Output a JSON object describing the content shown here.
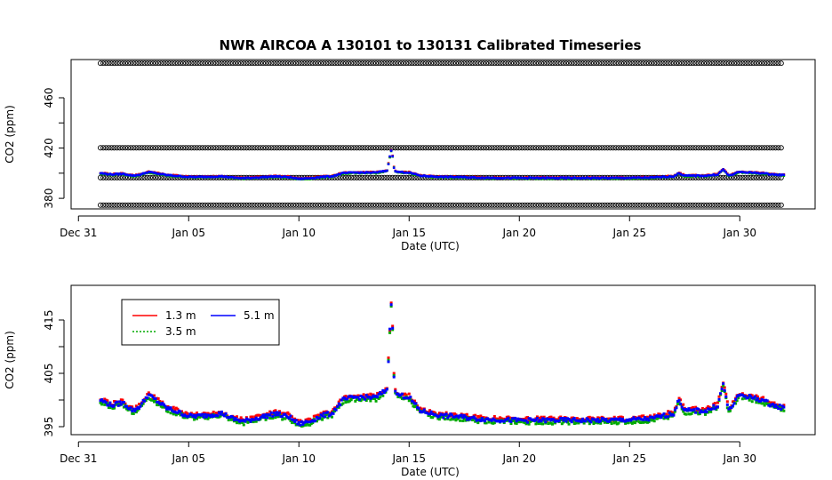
{
  "chart_data": [
    {
      "type": "scatter",
      "title": "NWR   AIRCOA  A   130101  to  130131   Calibrated Timeseries",
      "xlabel": "Date (UTC)",
      "ylabel": "CO2 (ppm)",
      "x_ticks": [
        "Dec 31",
        "Jan 05",
        "Jan 10",
        "Jan 15",
        "Jan 20",
        "Jan 25",
        "Jan 30"
      ],
      "y_ticks": [
        380,
        420,
        460
      ],
      "y_minor_ticks": [
        400,
        440
      ],
      "xlim": [
        "2012-12-30T16:00",
        "2013-02-02T10:00"
      ],
      "ylim": [
        371.6,
        490.4
      ],
      "grid": false,
      "series": [
        {
          "name": "",
          "color": "#000000",
          "value": 487.5,
          "x_range": [
            "2013-01-01T00:00",
            "2013-01-31T23:00"
          ]
        },
        {
          "name": "",
          "color": "#000000",
          "value": 420.2,
          "x_range": [
            "2013-01-01T00:00",
            "2013-01-31T23:00"
          ]
        },
        {
          "name": "",
          "color": "#000000",
          "value": 396.5,
          "x_range": [
            "2013-01-01T00:00",
            "2013-01-31T23:00"
          ]
        },
        {
          "name": "",
          "color": "#000000",
          "value": 374.6,
          "x_range": [
            "2013-01-01T00:00",
            "2013-01-31T23:00"
          ]
        },
        {
          "name": "1.3 m",
          "color": "#ff0000",
          "ref": "co2_profile"
        },
        {
          "name": "3.5 m",
          "color": "#00aa00",
          "ref": "co2_profile"
        },
        {
          "name": "5.1 m",
          "color": "#0000ff",
          "ref": "co2_profile"
        }
      ]
    },
    {
      "type": "scatter",
      "title": "",
      "xlabel": "Date (UTC)",
      "ylabel": "CO2 (ppm)",
      "x_ticks": [
        "Dec 31",
        "Jan 05",
        "Jan 10",
        "Jan 15",
        "Jan 20",
        "Jan 25",
        "Jan 30"
      ],
      "y_ticks": [
        395,
        405,
        415
      ],
      "y_minor_ticks": [
        400,
        410
      ],
      "xlim": [
        "2012-12-30T16:00",
        "2013-02-02T10:00"
      ],
      "ylim": [
        393.5,
        421.5
      ],
      "grid": false,
      "legend": {
        "position": "top-left",
        "entries": [
          {
            "label": "1.3 m",
            "color": "#ff0000"
          },
          {
            "label": "3.5 m",
            "color": "#00aa00"
          },
          {
            "label": "5.1 m",
            "color": "#0000ff"
          }
        ]
      },
      "co2_profile": {
        "x": [
          "2013-01-01T00:00",
          "2013-01-01T12:00",
          "2013-01-02T00:00",
          "2013-01-02T12:00",
          "2013-01-02T20:00",
          "2013-01-03T04:00",
          "2013-01-03T12:00",
          "2013-01-04T00:00",
          "2013-01-05T00:00",
          "2013-01-05T12:00",
          "2013-01-06T12:00",
          "2013-01-07T00:00",
          "2013-01-07T12:00",
          "2013-01-08T00:00",
          "2013-01-08T12:00",
          "2013-01-09T00:00",
          "2013-01-09T06:00",
          "2013-01-09T12:00",
          "2013-01-10T00:00",
          "2013-01-10T12:00",
          "2013-01-11T00:00",
          "2013-01-11T12:00",
          "2013-01-12T00:00",
          "2013-01-12T12:00",
          "2013-01-13T00:00",
          "2013-01-13T12:00",
          "2013-01-13T20:00",
          "2013-01-14T00:00",
          "2013-01-14T03:00",
          "2013-01-14T05:00",
          "2013-01-14T08:00",
          "2013-01-14T12:00",
          "2013-01-15T00:00",
          "2013-01-15T12:00",
          "2013-01-16T00:00",
          "2013-01-16T12:00",
          "2013-01-17T00:00",
          "2013-01-18T00:00",
          "2013-01-19T00:00",
          "2013-01-20T00:00",
          "2013-01-21T00:00",
          "2013-01-22T00:00",
          "2013-01-23T00:00",
          "2013-01-24T00:00",
          "2013-01-25T00:00",
          "2013-01-26T00:00",
          "2013-01-26T12:00",
          "2013-01-27T00:00",
          "2013-01-27T06:00",
          "2013-01-27T12:00",
          "2013-01-28T00:00",
          "2013-01-28T12:00",
          "2013-01-29T00:00",
          "2013-01-29T06:00",
          "2013-01-29T12:00",
          "2013-01-30T00:00",
          "2013-01-30T12:00",
          "2013-01-31T00:00",
          "2013-01-31T12:00",
          "2013-02-01T00:00"
        ],
        "y": [
          400,
          399,
          399.5,
          398,
          399,
          401,
          400,
          398.5,
          397,
          397,
          397.5,
          396.5,
          396,
          396.5,
          397,
          397.5,
          397,
          397,
          395.5,
          396,
          397,
          397.5,
          400,
          400.5,
          400.5,
          400.5,
          401.5,
          402,
          413,
          420,
          401.5,
          401,
          400.5,
          398,
          397.5,
          397,
          397,
          396.5,
          396.3,
          396.2,
          396.2,
          396.2,
          396.2,
          396.2,
          396.3,
          396.5,
          397,
          397.5,
          400,
          398,
          398,
          398,
          399,
          403,
          398,
          401,
          400.5,
          400,
          399,
          398.5
        ]
      }
    }
  ]
}
